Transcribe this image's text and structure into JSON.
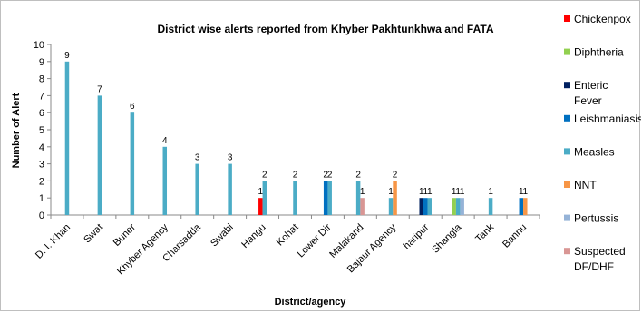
{
  "chart_data": {
    "type": "bar",
    "title": "District wise alerts reported from Khyber Pakhtunkhwa and FATA",
    "xlabel": "District/agency",
    "ylabel": "Number of Alert",
    "ylim": [
      0,
      10
    ],
    "yticks": [
      0,
      1,
      2,
      3,
      4,
      5,
      6,
      7,
      8,
      9,
      10
    ],
    "grid": false,
    "legend_position": "right",
    "categories": [
      "D. I. Khan",
      "Swat",
      "Buner",
      "Khyber Agency",
      "Charsadda",
      "Swabi",
      "Hangu",
      "Kohat",
      "Lower Dir",
      "Malakand",
      "Bajaur Agency",
      "haripur",
      "Shangla",
      "Tank",
      "Bannu"
    ],
    "series": [
      {
        "name": "Chickenpox",
        "color": "#ff0000",
        "values": [
          null,
          null,
          null,
          null,
          null,
          null,
          1,
          null,
          null,
          null,
          null,
          null,
          null,
          null,
          null
        ]
      },
      {
        "name": "Diphtheria",
        "color": "#92d050",
        "values": [
          null,
          null,
          null,
          null,
          null,
          null,
          null,
          null,
          null,
          null,
          null,
          null,
          1,
          null,
          null
        ]
      },
      {
        "name": "Enteric Fever",
        "color": "#002060",
        "values": [
          null,
          null,
          null,
          null,
          null,
          null,
          null,
          null,
          null,
          null,
          null,
          1,
          null,
          null,
          null
        ]
      },
      {
        "name": "Leishmaniasis",
        "color": "#0070c0",
        "values": [
          null,
          null,
          null,
          null,
          null,
          null,
          null,
          null,
          2,
          null,
          null,
          1,
          null,
          null,
          1
        ]
      },
      {
        "name": "Measles",
        "color": "#4bacc6",
        "values": [
          9,
          7,
          6,
          4,
          3,
          3,
          2,
          2,
          2,
          2,
          1,
          1,
          1,
          1,
          null
        ]
      },
      {
        "name": "NNT",
        "color": "#f79646",
        "values": [
          null,
          null,
          null,
          null,
          null,
          null,
          null,
          null,
          null,
          null,
          2,
          null,
          null,
          null,
          1
        ]
      },
      {
        "name": "Pertussis",
        "color": "#95b3d7",
        "values": [
          null,
          null,
          null,
          null,
          null,
          null,
          null,
          null,
          null,
          null,
          null,
          null,
          1,
          null,
          null
        ]
      },
      {
        "name": "Suspected DF/DHF",
        "color": "#d99694",
        "values": [
          null,
          null,
          null,
          null,
          null,
          null,
          null,
          null,
          null,
          1,
          null,
          null,
          null,
          null,
          null
        ]
      }
    ]
  }
}
